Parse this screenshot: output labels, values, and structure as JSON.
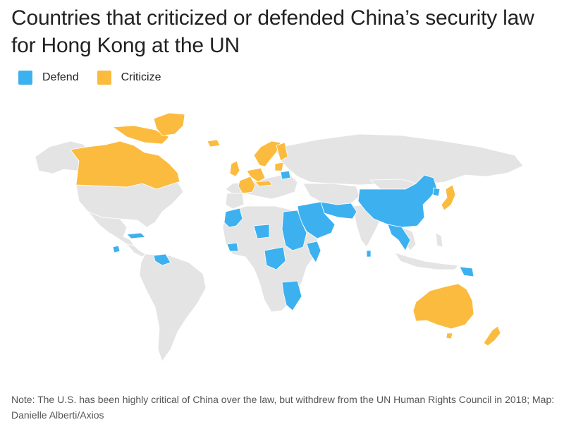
{
  "title": "Countries that criticized or defended China’s security law for Hong Kong at the UN",
  "legend": [
    {
      "label": "Defend",
      "color": "#3db1f0"
    },
    {
      "label": "Criticize",
      "color": "#fbbb3e"
    }
  ],
  "colors": {
    "defend": "#3db1f0",
    "criticize": "#fbbb3e",
    "neutral": "#e4e4e4",
    "border": "#ffffff"
  },
  "note": "Note: The U.S. has been highly critical of China over the law, but withdrew from the UN Human Rights Council in 2018; Map: Danielle Alberti/Axios",
  "map": {
    "criticize": [
      "Canada",
      "Greenland",
      "Iceland",
      "United Kingdom",
      "Ireland",
      "France",
      "Germany",
      "Netherlands",
      "Belgium",
      "Denmark",
      "Norway",
      "Sweden",
      "Finland",
      "Switzerland",
      "Austria",
      "Estonia",
      "Latvia",
      "Lithuania",
      "Japan",
      "Australia",
      "New Zealand"
    ],
    "defend": [
      "China",
      "North Korea",
      "Laos",
      "Cambodia",
      "Myanmar",
      "Sri Lanka",
      "Pakistan",
      "Iran",
      "Iraq",
      "Syria",
      "Saudi Arabia",
      "Yemen",
      "Oman",
      "United Arab Emirates",
      "Kuwait",
      "Bahrain",
      "Qatar",
      "Egypt",
      "Sudan",
      "South Sudan",
      "Somalia",
      "Eritrea",
      "Morocco",
      "Mauritania",
      "Niger",
      "Cameroon",
      "Central African Republic",
      "Gabon",
      "Republic of the Congo",
      "Burundi",
      "Tanzania",
      "Mozambique",
      "Zimbabwe",
      "Djibouti",
      "Sierra Leone",
      "Guinea",
      "Togo",
      "Equatorial Guinea",
      "Cuba",
      "Venezuela",
      "Suriname",
      "Nicaragua",
      "Belarus",
      "Papua New Guinea"
    ]
  }
}
